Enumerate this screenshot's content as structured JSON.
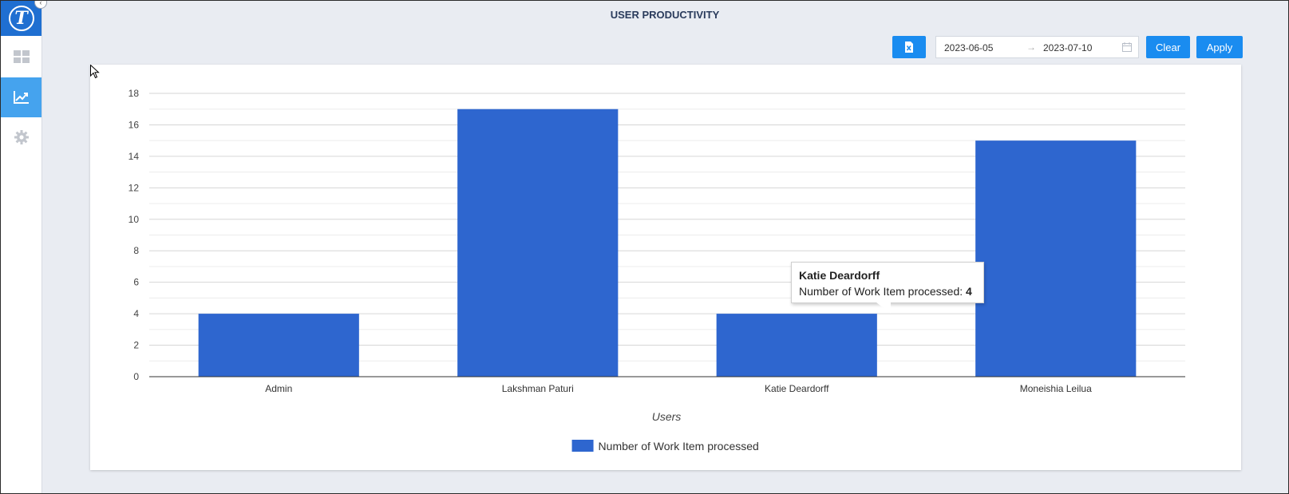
{
  "header": {
    "title": "USER PRODUCTIVITY"
  },
  "sidebar": {
    "logo_letter": "T",
    "items": [
      {
        "name": "dashboard",
        "icon": "dashboard-grid-icon",
        "active": false
      },
      {
        "name": "reports",
        "icon": "line-chart-icon",
        "active": true
      },
      {
        "name": "settings",
        "icon": "gear-icon",
        "active": false
      }
    ]
  },
  "toolbar": {
    "export_icon": "excel-file-icon",
    "start_date": "2023-06-05",
    "end_date": "2023-07-10",
    "range_separator": "→",
    "clear_label": "Clear",
    "apply_label": "Apply"
  },
  "colors": {
    "accent": "#1a8cf0",
    "sidebar_active": "#45a3ee",
    "bar": "#2e66cf",
    "logo_bg": "#1f6fd1"
  },
  "tooltip": {
    "title": "Katie Deardorff",
    "label": "Number of Work Item processed: ",
    "value": "4"
  },
  "chart_data": {
    "type": "bar",
    "categories": [
      "Admin",
      "Lakshman Paturi",
      "Katie Deardorff",
      "Moneishia Leilua"
    ],
    "series": [
      {
        "name": "Number of Work Item processed",
        "values": [
          4,
          17,
          4,
          15
        ]
      }
    ],
    "xlabel": "Users",
    "ylabel": "",
    "ylim": [
      0,
      18
    ],
    "yticks": [
      0,
      2,
      4,
      6,
      8,
      10,
      12,
      14,
      16,
      18
    ],
    "grid": true,
    "legend": "bottom"
  }
}
